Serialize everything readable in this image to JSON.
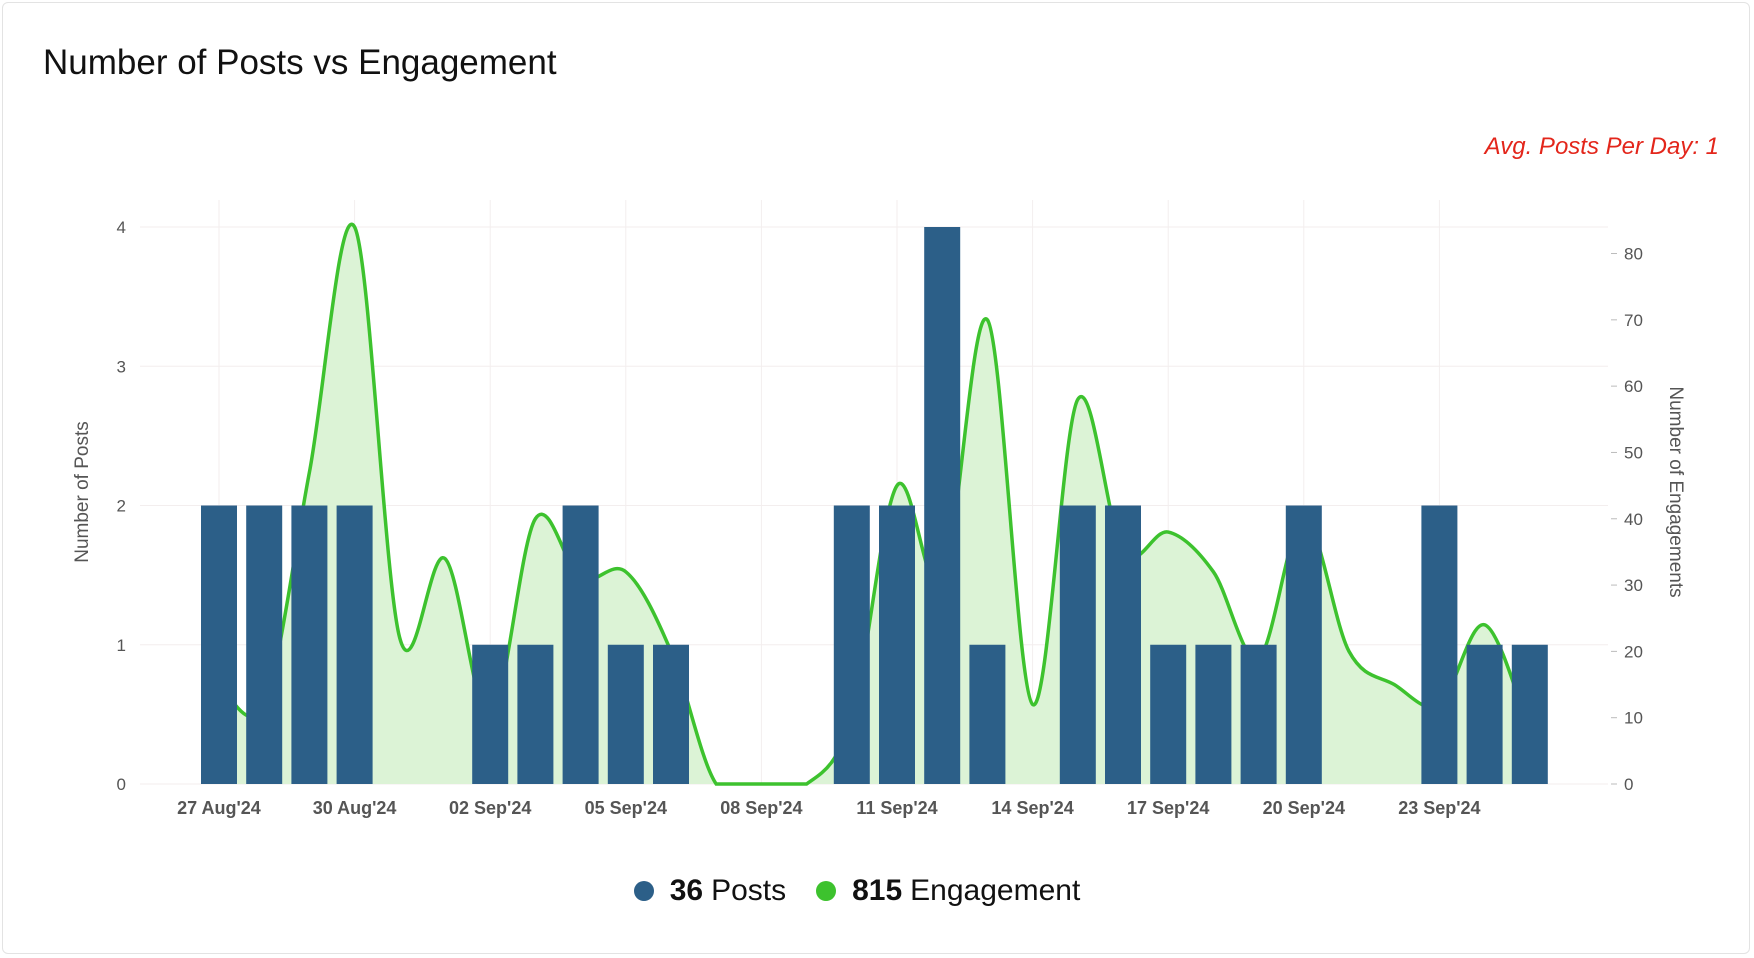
{
  "title": "Number of Posts vs Engagement",
  "avg_label": "Avg. Posts Per Day: 1",
  "colors": {
    "posts": "#2c5f88",
    "engagement_line": "#3dc22e",
    "engagement_fill": "#dcf3d6",
    "avg": "#e3261b"
  },
  "legend": [
    {
      "value": "36",
      "label": "Posts"
    },
    {
      "value": "815",
      "label": "Engagement"
    }
  ],
  "chart_data": {
    "type": "bar+area",
    "title": "Number of Posts vs Engagement",
    "x": [
      "27 Aug'24",
      "28 Aug'24",
      "29 Aug'24",
      "30 Aug'24",
      "31 Aug'24",
      "01 Sep'24",
      "02 Sep'24",
      "03 Sep'24",
      "04 Sep'24",
      "05 Sep'24",
      "06 Sep'24",
      "07 Sep'24",
      "08 Sep'24",
      "09 Sep'24",
      "10 Sep'24",
      "11 Sep'24",
      "12 Sep'24",
      "13 Sep'24",
      "14 Sep'24",
      "15 Sep'24",
      "16 Sep'24",
      "17 Sep'24",
      "18 Sep'24",
      "19 Sep'24",
      "20 Sep'24",
      "21 Sep'24",
      "22 Sep'24",
      "23 Sep'24",
      "24 Sep'24",
      "25 Sep'24"
    ],
    "xtick_labels": [
      "27 Aug'24",
      "30 Aug'24",
      "02 Sep'24",
      "05 Sep'24",
      "08 Sep'24",
      "11 Sep'24",
      "14 Sep'24",
      "17 Sep'24",
      "20 Sep'24",
      "23 Sep'24"
    ],
    "series": [
      {
        "name": "Posts",
        "type": "bar",
        "axis": "left",
        "values": [
          2,
          2,
          2,
          2,
          0,
          0,
          1,
          1,
          2,
          1,
          1,
          0,
          0,
          0,
          2,
          2,
          4,
          1,
          0,
          2,
          2,
          1,
          1,
          1,
          2,
          0,
          0,
          2,
          1,
          1
        ]
      },
      {
        "name": "Engagement",
        "type": "area",
        "axis": "right",
        "values": [
          15,
          12,
          47,
          84,
          22,
          34,
          10,
          40,
          31,
          32,
          20,
          0,
          0,
          0,
          10,
          45,
          30,
          70,
          12,
          58,
          35,
          38,
          32,
          19,
          40,
          20,
          15,
          12,
          24,
          8
        ]
      }
    ],
    "ylabel": "Number of Posts",
    "ylabel_right": "Number of Engagements",
    "ylim": [
      0,
      4
    ],
    "yticks": [
      "0",
      "1",
      "2",
      "3",
      "4"
    ],
    "ylim_right": [
      0,
      84
    ],
    "yticks_right": [
      "0",
      "10",
      "20",
      "30",
      "40",
      "50",
      "60",
      "70",
      "80"
    ],
    "grid": true,
    "legend_position": "bottom-center"
  }
}
